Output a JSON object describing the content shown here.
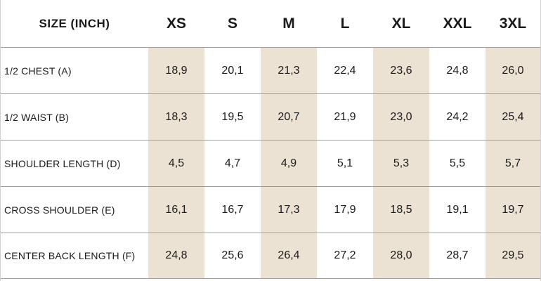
{
  "header": {
    "title": "SIZE (INCH)",
    "sizes": [
      "XS",
      "S",
      "M",
      "L",
      "XL",
      "XXL",
      "3XL"
    ]
  },
  "colors": {
    "shade": "#ece2d3",
    "divider": "#9e9e9e",
    "text": "#1a1a1a"
  },
  "rows": [
    {
      "label": "1/2 CHEST (A)",
      "values": [
        "18,9",
        "20,1",
        "21,3",
        "22,4",
        "23,6",
        "24,8",
        "26,0"
      ]
    },
    {
      "label": "1/2 WAIST (B)",
      "values": [
        "18,3",
        "19,5",
        "20,7",
        "21,9",
        "23,0",
        "24,2",
        "25,4"
      ]
    },
    {
      "label": "SHOULDER LENGTH (D)",
      "values": [
        "4,5",
        "4,7",
        "4,9",
        "5,1",
        "5,3",
        "5,5",
        "5,7"
      ]
    },
    {
      "label": "CROSS SHOULDER (E)",
      "values": [
        "16,1",
        "16,7",
        "17,3",
        "17,9",
        "18,5",
        "19,1",
        "19,7"
      ]
    },
    {
      "label": "CENTER BACK LENGTH (F)",
      "values": [
        "24,8",
        "25,6",
        "26,4",
        "27,2",
        "28,0",
        "28,7",
        "29,5"
      ]
    }
  ]
}
